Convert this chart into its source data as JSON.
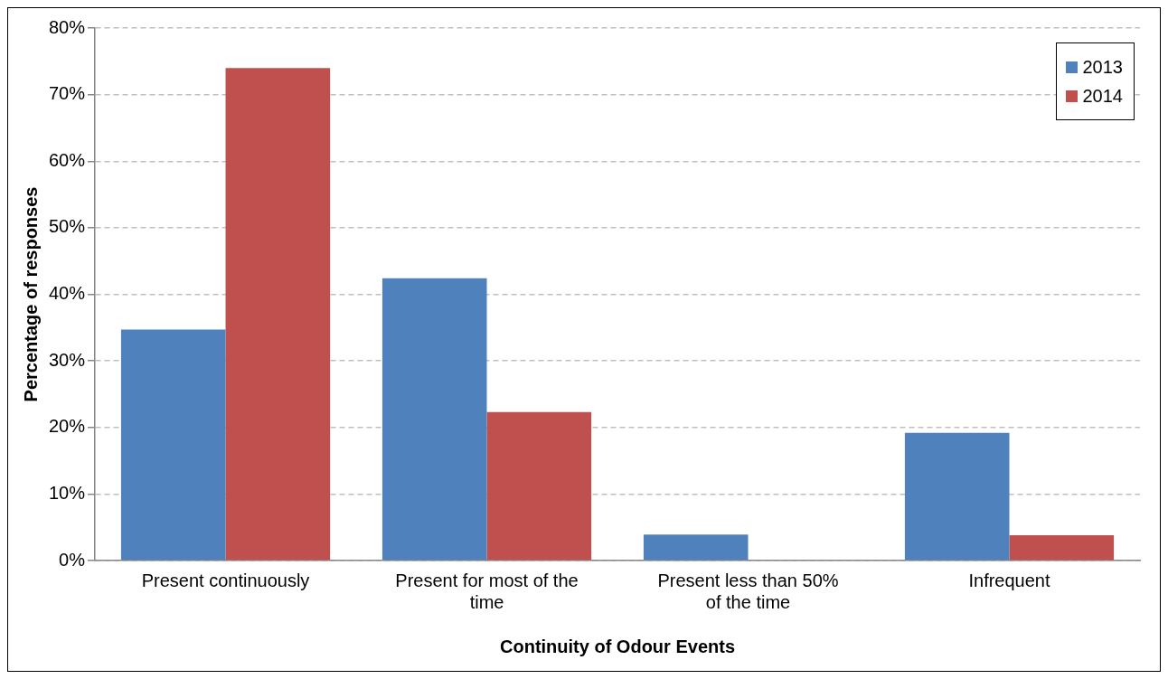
{
  "chart_data": {
    "type": "bar",
    "xlabel": "Continuity of Odour Events",
    "ylabel": "Percentage of responses",
    "categories": [
      "Present continuously",
      "Present for most of the time",
      "Present less than 50% of the time",
      "Infrequent"
    ],
    "series": [
      {
        "name": "2013",
        "color": "#4f81bd",
        "values": [
          34.7,
          42.4,
          3.9,
          19.2
        ]
      },
      {
        "name": "2014",
        "color": "#c0504d",
        "values": [
          74,
          22.3,
          0,
          3.8
        ]
      }
    ],
    "ylim": [
      0,
      80
    ],
    "yticks": [
      {
        "value": 0,
        "label": "0%"
      },
      {
        "value": 10,
        "label": "10%"
      },
      {
        "value": 20,
        "label": "20%"
      },
      {
        "value": 30,
        "label": "30%"
      },
      {
        "value": 40,
        "label": "40%"
      },
      {
        "value": 50,
        "label": "50%"
      },
      {
        "value": 60,
        "label": "60%"
      },
      {
        "value": 70,
        "label": "70%"
      },
      {
        "value": 80,
        "label": "80%"
      }
    ],
    "grid": "y",
    "legend": "top right"
  }
}
